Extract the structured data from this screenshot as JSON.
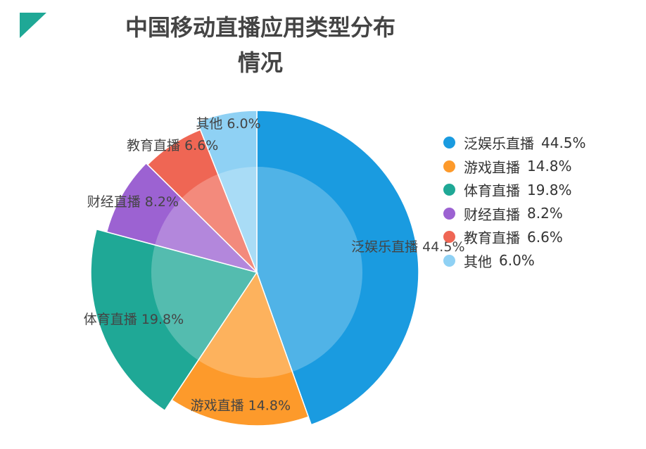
{
  "chart_data": {
    "type": "pie",
    "title_lines": [
      "中国移动直播应用类型分布",
      "情况"
    ],
    "categories": [
      "泛娱乐直播",
      "游戏直播",
      "体育直播",
      "财经直播",
      "教育直播",
      "其他"
    ],
    "values": [
      44.5,
      14.8,
      19.8,
      8.2,
      6.6,
      6.0
    ],
    "value_labels": [
      "44.5%",
      "14.8%",
      "19.8%",
      "8.2%",
      "6.6%",
      "6.0%"
    ],
    "colors": [
      "#1a9be0",
      "#fd9a2b",
      "#1fa896",
      "#9c62d2",
      "#ef6654",
      "#8fd1f4"
    ],
    "legend_position": "right",
    "accent_color": "#1fa896",
    "center_highlight_color": "#ffffff"
  }
}
